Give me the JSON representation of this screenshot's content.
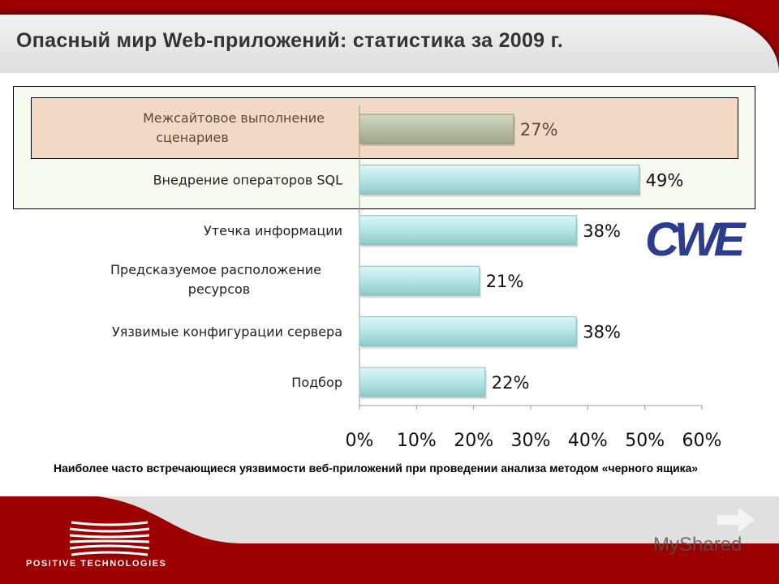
{
  "header": {
    "title": "Опасный мир Web-приложений: статистика за 2009 г."
  },
  "chart_data": {
    "type": "bar",
    "orientation": "horizontal",
    "categories": [
      "Межсайтовое выполнение сценариев",
      "Внедрение операторов SQL",
      "Утечка информации",
      "Предсказуемое расположение ресурсов",
      "Уязвимые конфигурации сервера",
      "Подбор"
    ],
    "label_lines": [
      [
        "Межсайтовое выполнение",
        "сценариев"
      ],
      [
        "Внедрение операторов SQL"
      ],
      [
        "Утечка информации"
      ],
      [
        "Предсказуемое расположение",
        "ресурсов"
      ],
      [
        "Уязвимые конфигурации сервера"
      ],
      [
        "Подбор"
      ]
    ],
    "values": [
      27,
      49,
      38,
      21,
      38,
      22
    ],
    "data_labels": [
      "27%",
      "49%",
      "38%",
      "21%",
      "38%",
      "22%"
    ],
    "xlim": [
      0,
      60
    ],
    "x_ticks": [
      "0%",
      "10%",
      "20%",
      "30%",
      "40%",
      "50%",
      "60%"
    ],
    "highlighted": [
      0
    ],
    "colors": {
      "bar": "#b4e6e6",
      "highlight_bar": "#b8bfa4"
    }
  },
  "caption": "Наиболее часто встречающиеся уязвимости веб-приложений при проведении анализа методом «черного ящика»",
  "logos": {
    "cwe": "CWE",
    "company": "POSITIVE TECHNOLOGIES",
    "watermark": "MyShared"
  }
}
